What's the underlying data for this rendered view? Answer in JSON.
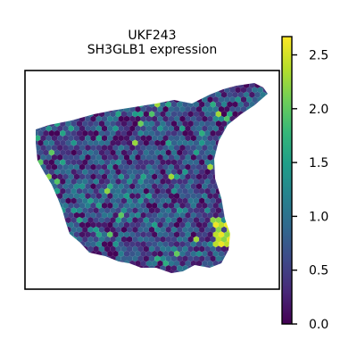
{
  "chart_data": {
    "type": "scatter",
    "plot_kind": "spatial-hexbin",
    "title_line1": "UKF243",
    "title_line2": "SH3GLB1 expression",
    "xlabel": "",
    "ylabel": "",
    "colorbar": {
      "colormap": "viridis",
      "range": [
        0.0,
        2.67
      ],
      "ticks": [
        0.0,
        0.5,
        1.0,
        1.5,
        2.0,
        2.5
      ],
      "tick_labels": [
        "0.0",
        "0.5",
        "1.0",
        "1.5",
        "2.0",
        "2.5"
      ],
      "colormap_stops": [
        "#440154",
        "#482878",
        "#3e4989",
        "#31688e",
        "#26828e",
        "#1f9e89",
        "#35b779",
        "#6ece58",
        "#b5de2b",
        "#fde725"
      ]
    },
    "expression_summary": {
      "typical_value": 0.7,
      "low_spot_value": 0.0,
      "high_spot_values": [
        2.2,
        2.4,
        2.6
      ],
      "hotspot_location": "right edge, lower-middle"
    },
    "grid": false,
    "axes_ticks": false,
    "legend": "none"
  }
}
